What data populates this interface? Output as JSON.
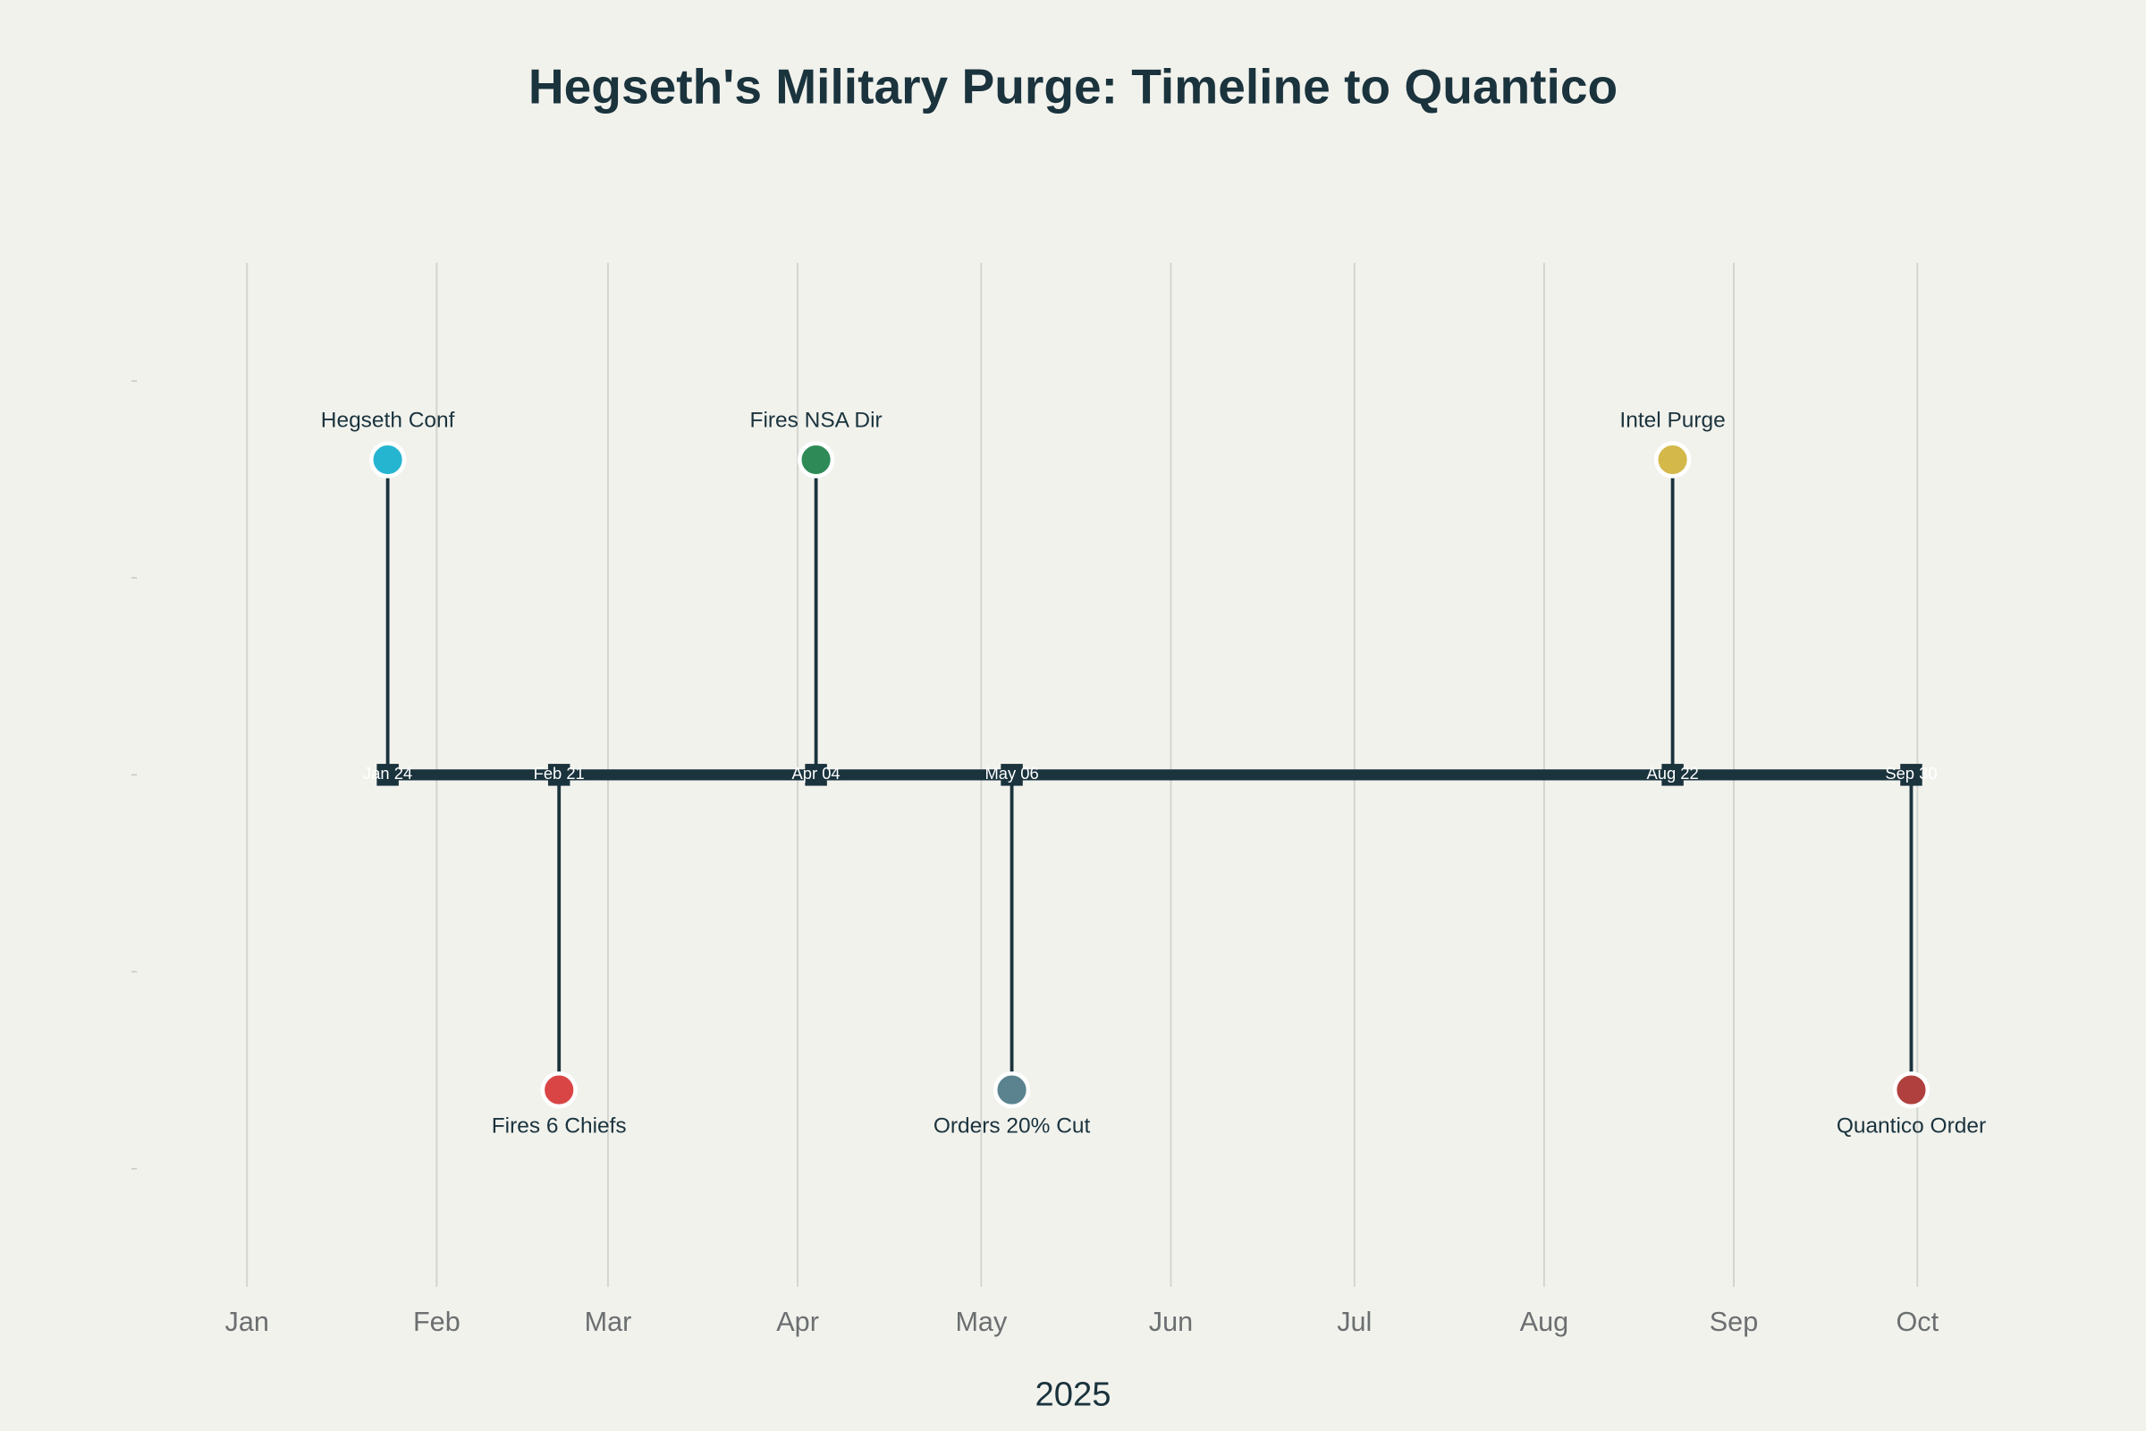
{
  "chart_data": {
    "type": "timeline",
    "title": "Hegseth's Military Purge: Timeline to Quantico",
    "x_label": "2025",
    "x": [
      "2025-01-24",
      "2025-02-21",
      "2025-04-04",
      "2025-05-06",
      "2025-08-22",
      "2025-09-30"
    ],
    "date_labels": [
      "Jan 24",
      "Feb 21",
      "Apr 04",
      "May 06",
      "Aug 22",
      "Sep 30"
    ],
    "labels": [
      "Hegseth Conf",
      "Fires 6 Chiefs",
      "Fires NSA Dir",
      "Orders 20% Cut",
      "Intel Purge",
      "Quantico Order"
    ],
    "values": [
      1.6,
      -1.6,
      1.6,
      -1.6,
      1.6,
      -1.6
    ],
    "colors": [
      "#26b5d1",
      "#d94545",
      "#2e8b57",
      "#5a838f",
      "#d4b84a",
      "#b0403d"
    ],
    "line_color": "#1a333d",
    "xlim": [
      "2024-12-14",
      "2025-10-16"
    ],
    "xticks": [
      {
        "value": "2025-01-01",
        "label": "Jan"
      },
      {
        "value": "2025-02-01",
        "label": "Feb"
      },
      {
        "value": "2025-03-01",
        "label": "Mar"
      },
      {
        "value": "2025-04-01",
        "label": "Apr"
      },
      {
        "value": "2025-05-01",
        "label": "May"
      },
      {
        "value": "2025-06-01",
        "label": "Jun"
      },
      {
        "value": "2025-07-01",
        "label": "Jul"
      },
      {
        "value": "2025-08-01",
        "label": "Aug"
      },
      {
        "value": "2025-09-01",
        "label": "Sep"
      },
      {
        "value": "2025-10-01",
        "label": "Oct"
      }
    ],
    "ylim": [
      -2.6,
      2.6
    ],
    "yticks": [
      -2,
      -1,
      0,
      1,
      2
    ],
    "grid": true
  }
}
